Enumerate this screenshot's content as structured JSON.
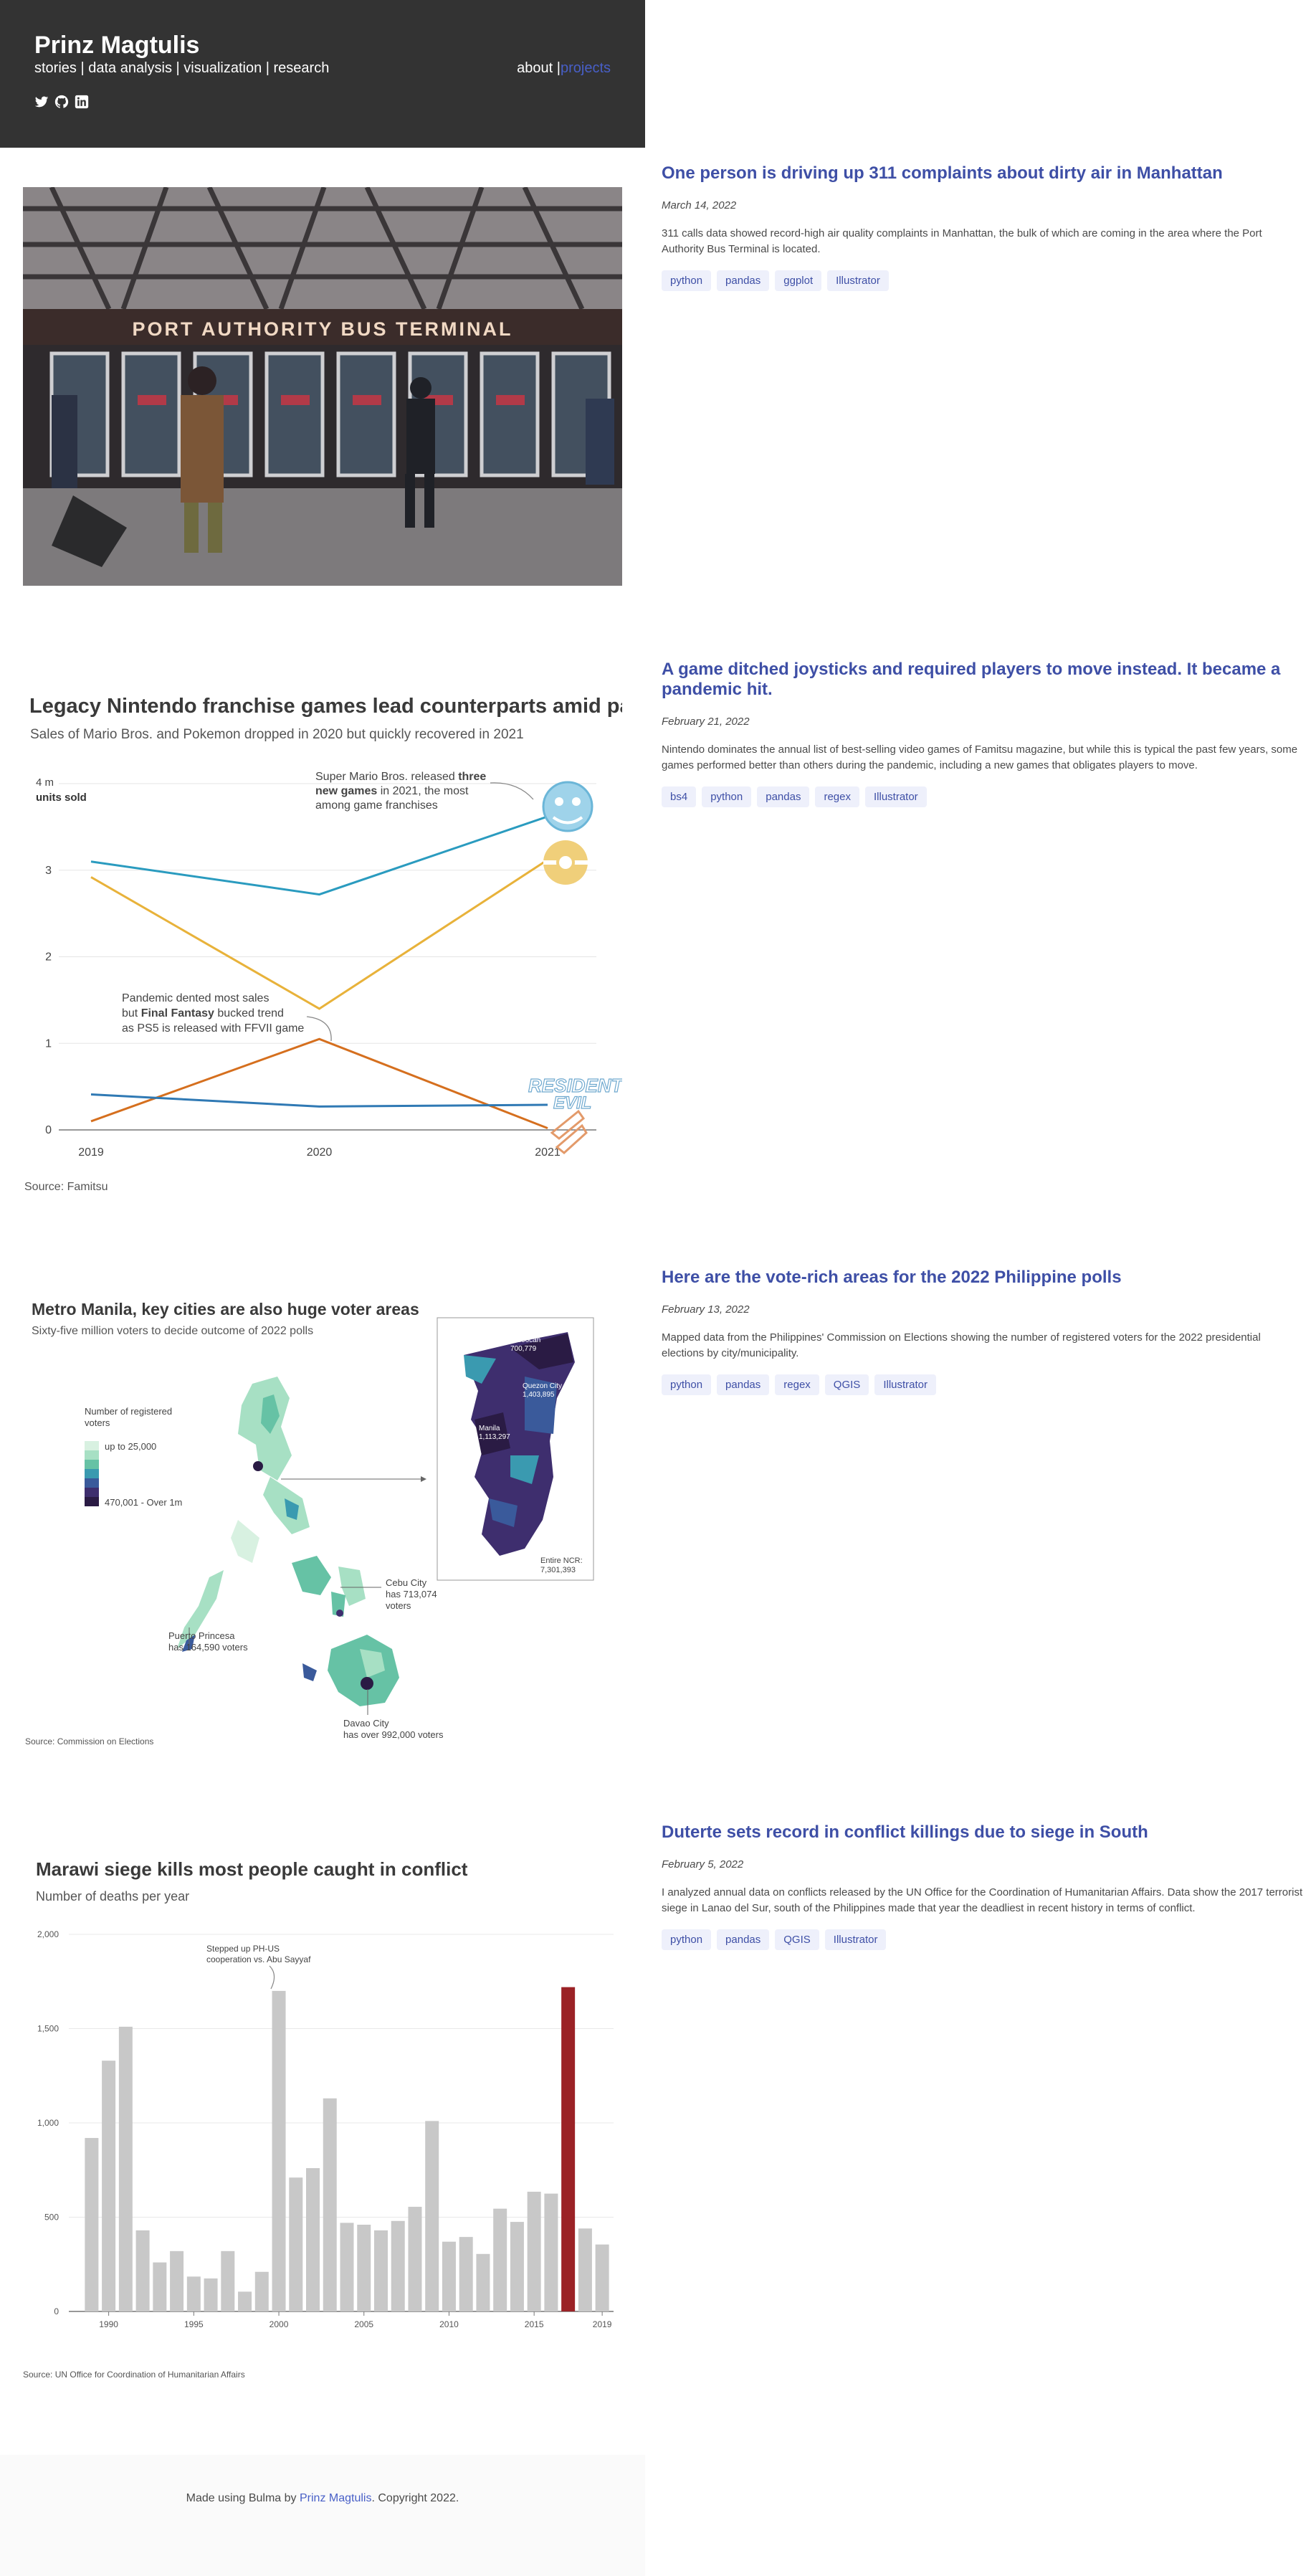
{
  "header": {
    "brand": "Prinz Magtulis",
    "tagline": "stories | data analysis | visualization | research",
    "nav": {
      "about": "about",
      "sep": " |",
      "projects": "projects"
    },
    "socials": [
      "twitter-icon",
      "github-icon",
      "linkedin-icon"
    ]
  },
  "colors": {
    "link": "#3e4fa6",
    "hero_bg": "#333333",
    "tag_bg": "#eef0fb",
    "accent_bar": "#9b2226"
  },
  "posts": [
    {
      "title": "One person is driving up 311 complaints about dirty air in Manhattan",
      "date": "March 14, 2022",
      "desc": "311 calls data showed record-high air quality complaints in Manhattan, the bulk of which are coming in the area where the Port Authority Bus Terminal is located.",
      "tags": [
        "python",
        "pandas",
        "ggplot",
        "Illustrator"
      ],
      "image": {
        "sign": "PORT AUTHORITY BUS TERMINAL"
      }
    },
    {
      "title": "A game ditched joysticks and required players to move instead. It became a pandemic hit.",
      "date": "February 21, 2022",
      "desc": "Nintendo dominates the annual list of best-selling video games of Famitsu magazine, but while this is typical the past few years, some games performed better than others during the pandemic, including a new games that obligates players to move.",
      "tags": [
        "bs4",
        "python",
        "pandas",
        "regex",
        "Illustrator"
      ]
    },
    {
      "title": "Here are the vote-rich areas for the 2022 Philippine polls",
      "date": "February 13, 2022",
      "desc": "Mapped data from the Philippines' Commission on Elections showing the number of registered voters for the 2022 presidential elections by city/municipality.",
      "tags": [
        "python",
        "pandas",
        "regex",
        "QGIS",
        "Illustrator"
      ]
    },
    {
      "title": "Duterte sets record in conflict killings due to siege in South",
      "date": "February 5, 2022",
      "desc": "I analyzed annual data on conflicts released by the UN Office for the Coordination of Humanitarian Affairs. Data show the 2017 terrorist siege in Lanao del Sur, south of the Philippines made that year the deadliest in recent history in terms of conflict.",
      "tags": [
        "python",
        "pandas",
        "QGIS",
        "Illustrator"
      ]
    }
  ],
  "line_chart_text": {
    "title": "Legacy Nintendo franchise games lead counterparts amid pandemic",
    "subtitle": "Sales of Mario Bros. and Pokemon dropped in 2020 but quickly recovered in 2021",
    "unit_top": "4 m",
    "unit_bottom": "units sold",
    "ann1_a": "Super Mario Bros. released ",
    "ann1_b": "three",
    "ann1_c": "new games",
    "ann1_d": " in 2021, the most",
    "ann1_e": "among game franchises",
    "ann2_a": "Pandemic dented most sales",
    "ann2_b": "but ",
    "ann2_c": "Final Fantasy",
    "ann2_d": " bucked trend",
    "ann2_e": "as PS5 is released with FFVII game",
    "logo_text_a": "RESIDENT",
    "logo_text_b": "EVIL",
    "source": "Source: Famitsu"
  },
  "map_text": {
    "title": "Metro Manila, key cities are also huge voter areas",
    "subtitle": "Sixty-five million voters to decide outcome of 2022 polls",
    "legend_title_a": "Number of registered",
    "legend_title_b": "voters",
    "legend_low": "up to 25,000",
    "legend_high": "470,001 - Over 1m",
    "cebu_a": "Cebu City",
    "cebu_b": "has 713,074",
    "cebu_c": "voters",
    "pp_a": "Puerto Princesa",
    "pp_b": "has 164,590 voters",
    "davao_a": "Davao City",
    "davao_b": "has over 992,000 voters",
    "caloocan_a": "Caloocan",
    "caloocan_b": "700,779",
    "qc_a": "Quezon City",
    "qc_b": "1,403,895",
    "manila_a": "Manila",
    "manila_b": "1,113,297",
    "ncr_a": "Entire NCR:",
    "ncr_b": "7,301,393",
    "source": "Source: Commission on Elections"
  },
  "chart_data": [
    {
      "type": "line",
      "title": "Legacy Nintendo franchise games lead counterparts amid pandemic",
      "subtitle": "Sales of Mario Bros. and Pokemon dropped in 2020 but quickly recovered in 2021",
      "x": [
        "2019",
        "2020",
        "2021"
      ],
      "ylabel": "4 m units sold",
      "ylim": [
        0,
        4
      ],
      "yticks": [
        "0",
        "1",
        "2",
        "3",
        "4 m"
      ],
      "grid": true,
      "series": [
        {
          "values": [
            3.1,
            2.72,
            3.62
          ],
          "color": "#2a9bbf"
        },
        {
          "values": [
            2.92,
            1.4,
            3.12
          ],
          "color": "#e8b23a"
        },
        {
          "values": [
            0.1,
            1.05,
            0.02
          ],
          "color": "#d56f1e"
        },
        {
          "values": [
            0.41,
            0.27,
            0.29
          ],
          "color": "#2f79b4"
        }
      ],
      "source": "Source: Famitsu"
    },
    {
      "type": "bar",
      "title": "Marawi siege kills most people caught in conflict",
      "subtitle": "Number of deaths per year",
      "categories": [
        "1989",
        "1990",
        "1991",
        "1992",
        "1993",
        "1994",
        "1995",
        "1996",
        "1997",
        "1998",
        "1999",
        "2000",
        "2001",
        "2002",
        "2003",
        "2004",
        "2005",
        "2006",
        "2007",
        "2008",
        "2009",
        "2010",
        "2011",
        "2012",
        "2013",
        "2014",
        "2015",
        "2016",
        "2017",
        "2018",
        "2019"
      ],
      "values": [
        920,
        1330,
        1510,
        430,
        260,
        320,
        185,
        175,
        320,
        105,
        210,
        1700,
        710,
        760,
        1130,
        470,
        460,
        430,
        480,
        555,
        1010,
        370,
        395,
        305,
        545,
        475,
        635,
        625,
        1720,
        440,
        355
      ],
      "highlight": "2017",
      "xticks": [
        "1990",
        "1995",
        "2000",
        "2005",
        "2010",
        "2015",
        "2019"
      ],
      "yticks": [
        "0",
        "500",
        "1,000",
        "1,500",
        "2,000"
      ],
      "ylim": [
        0,
        2000
      ],
      "annotation": "Stepped up PH-US cooperation vs. Abu Sayyaf",
      "annotation_a": "Stepped up PH-US",
      "annotation_b": "cooperation vs. Abu Sayyaf",
      "source": "Source: UN Office for Coordination of Humanitarian Affairs"
    }
  ],
  "footer": {
    "pre": "Made using Bulma by ",
    "link": "Prinz Magtulis",
    "post": ". Copyright 2022."
  }
}
